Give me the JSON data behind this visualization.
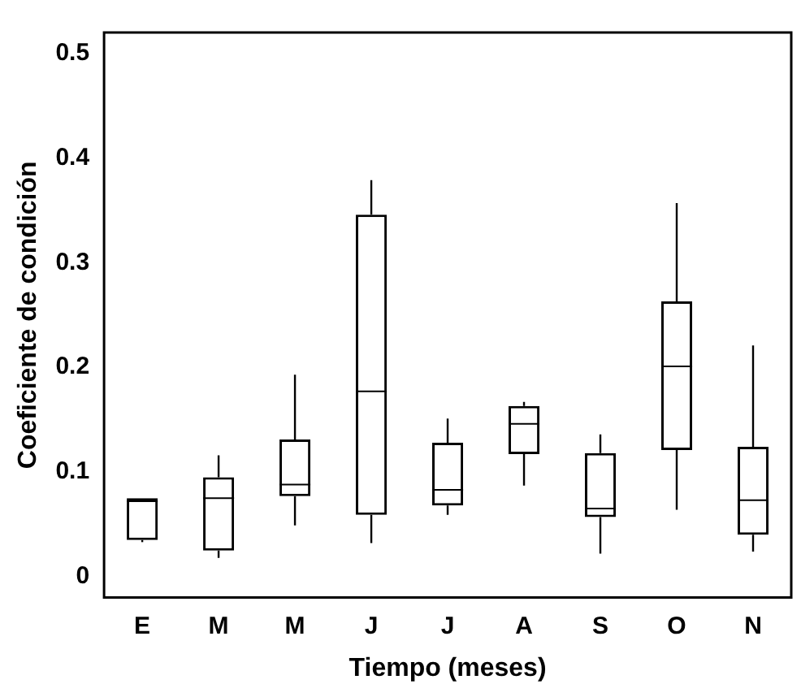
{
  "chart_data": {
    "type": "box",
    "xlabel": "Tiempo (meses)",
    "ylabel": "Coeficiente de condición",
    "categories": [
      "E",
      "M",
      "M",
      "J",
      "J",
      "A",
      "S",
      "O",
      "N"
    ],
    "color": "#000000",
    "ylim": [
      -0.02,
      0.52
    ],
    "yticks": [
      0,
      0.1,
      0.2,
      0.3,
      0.4,
      0.5
    ],
    "grid": false,
    "legend": false,
    "boxes": [
      {
        "low": 0.033,
        "q1": 0.035,
        "median": 0.072,
        "q3": 0.075,
        "high": 0.075
      },
      {
        "low": 0.018,
        "q1": 0.025,
        "median": 0.075,
        "q3": 0.095,
        "high": 0.116
      },
      {
        "low": 0.049,
        "q1": 0.077,
        "median": 0.088,
        "q3": 0.131,
        "high": 0.193
      },
      {
        "low": 0.032,
        "q1": 0.059,
        "median": 0.177,
        "q3": 0.346,
        "high": 0.379
      },
      {
        "low": 0.059,
        "q1": 0.068,
        "median": 0.083,
        "q3": 0.128,
        "high": 0.151
      },
      {
        "low": 0.087,
        "q1": 0.117,
        "median": 0.146,
        "q3": 0.163,
        "high": 0.167
      },
      {
        "low": 0.022,
        "q1": 0.057,
        "median": 0.065,
        "q3": 0.118,
        "high": 0.136
      },
      {
        "low": 0.064,
        "q1": 0.121,
        "median": 0.201,
        "q3": 0.263,
        "high": 0.357
      },
      {
        "low": 0.024,
        "q1": 0.04,
        "median": 0.073,
        "q3": 0.124,
        "high": 0.221
      }
    ]
  }
}
